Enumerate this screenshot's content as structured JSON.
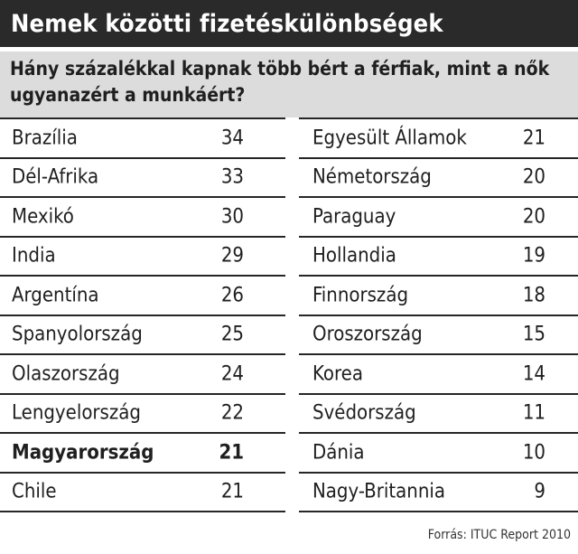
{
  "title": "Nemek közötti fizetéskülönbségek",
  "subtitle": "Hány százalékkal kapnak több bért a férfiak, mint a nők ugyanazért a munkáért?",
  "source": "Forrás: ITUC Report 2010",
  "highlight_color": "#1f1f1f",
  "chart_data": {
    "type": "table",
    "columns": [
      "country",
      "value"
    ],
    "left": [
      {
        "country": "Brazília",
        "value": 34
      },
      {
        "country": "Dél-Afrika",
        "value": 33
      },
      {
        "country": "Mexikó",
        "value": 30
      },
      {
        "country": "India",
        "value": 29
      },
      {
        "country": "Argentína",
        "value": 26
      },
      {
        "country": "Spanyolország",
        "value": 25
      },
      {
        "country": "Olaszország",
        "value": 24
      },
      {
        "country": "Lengyelország",
        "value": 22
      },
      {
        "country": "Magyarország",
        "value": 21,
        "highlight": true
      },
      {
        "country": "Chile",
        "value": 21
      }
    ],
    "right": [
      {
        "country": "Egyesült Államok",
        "value": 21
      },
      {
        "country": "Németország",
        "value": 20
      },
      {
        "country": "Paraguay",
        "value": 20
      },
      {
        "country": "Hollandia",
        "value": 19
      },
      {
        "country": "Finnország",
        "value": 18
      },
      {
        "country": "Oroszország",
        "value": 15
      },
      {
        "country": "Korea",
        "value": 14
      },
      {
        "country": "Svédország",
        "value": 11
      },
      {
        "country": "Dánia",
        "value": 10
      },
      {
        "country": "Nagy-Britannia",
        "value": 9
      }
    ]
  }
}
